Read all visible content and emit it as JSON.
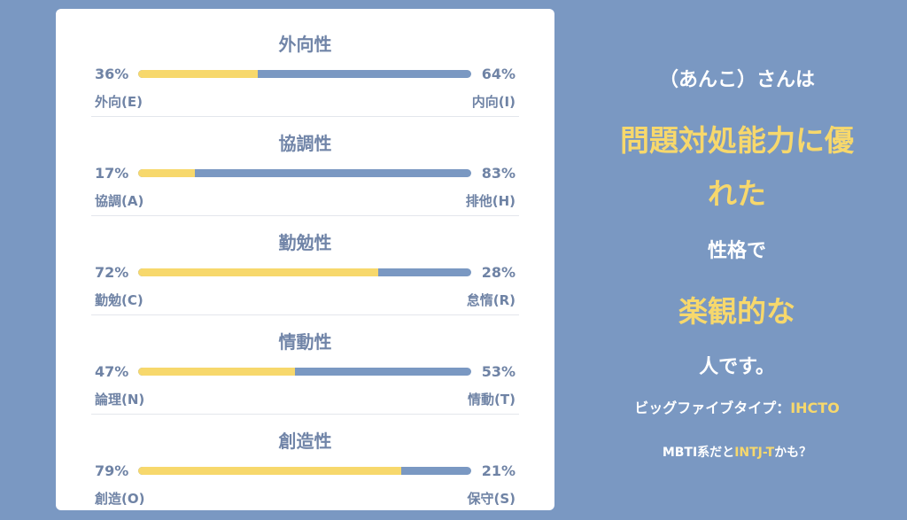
{
  "traits": [
    {
      "title": "外向性",
      "left_pct": "36%",
      "right_pct": "64%",
      "left_label": "外向(E)",
      "right_label": "内向(I)",
      "left_value": 36
    },
    {
      "title": "協調性",
      "left_pct": "17%",
      "right_pct": "83%",
      "left_label": "協調(A)",
      "right_label": "排他(H)",
      "left_value": 17
    },
    {
      "title": "勤勉性",
      "left_pct": "72%",
      "right_pct": "28%",
      "left_label": "勤勉(C)",
      "right_label": "怠惰(R)",
      "left_value": 72
    },
    {
      "title": "情動性",
      "left_pct": "47%",
      "right_pct": "53%",
      "left_label": "論理(N)",
      "right_label": "情動(T)",
      "left_value": 47
    },
    {
      "title": "創造性",
      "left_pct": "79%",
      "right_pct": "21%",
      "left_label": "創造(O)",
      "right_label": "保守(S)",
      "left_value": 79
    }
  ],
  "result": {
    "line1": "（あんこ）さんは",
    "line2": "問題対処能力に優",
    "line3": "れた",
    "line4": "性格で",
    "line5": "楽観的な",
    "line6": "人です。",
    "bigfive_label": "ビッグファイブタイプ：",
    "bigfive_type": "IHCTO",
    "mbti_prefix": "MBTI系だと",
    "mbti_type": "INTJ-T",
    "mbti_suffix": "かも？"
  },
  "colors": {
    "background": "#7a98c2",
    "accent_yellow": "#f7d86c",
    "bar_blue": "#7a98c2",
    "text_blue": "#6f83a5"
  }
}
